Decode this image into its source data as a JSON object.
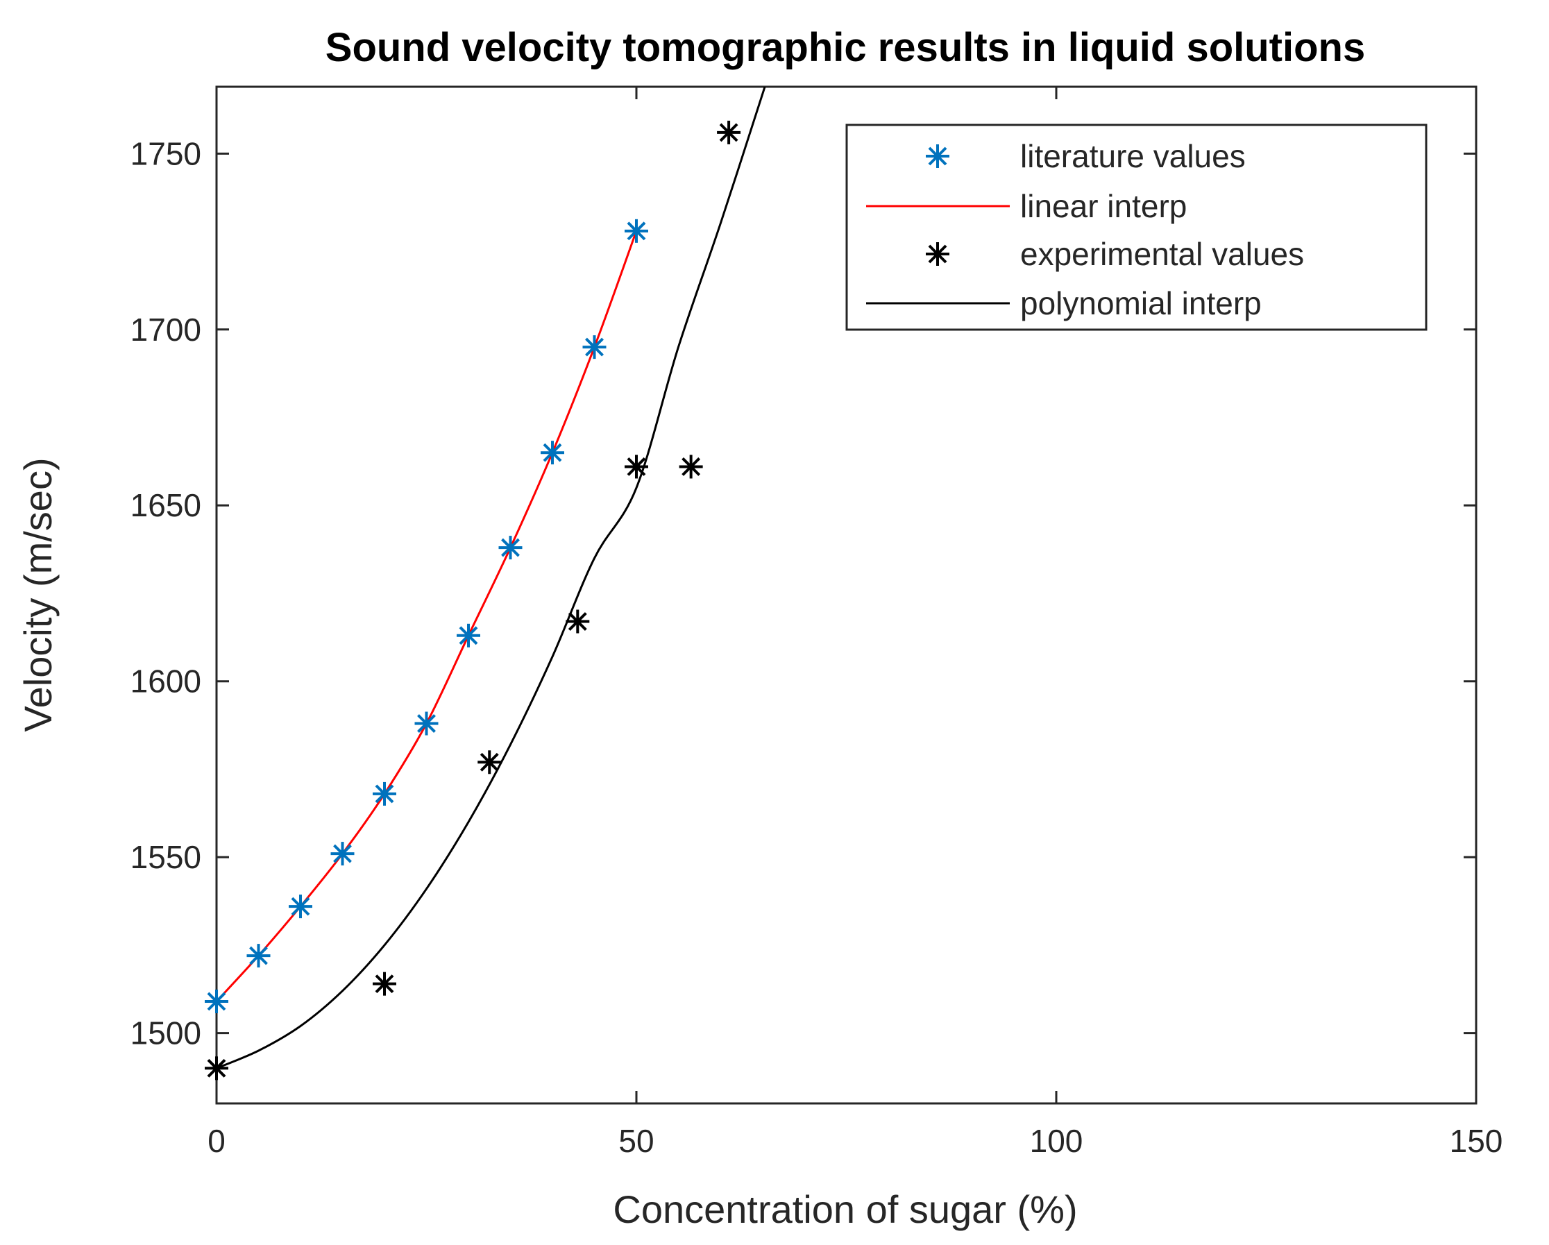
{
  "chart_data": {
    "type": "scatter",
    "title": "Sound velocity tomographic results in liquid solutions",
    "xlabel": "Concentration of sugar (%)",
    "ylabel": "Velocity (m/sec)",
    "xlim": [
      0,
      150
    ],
    "ylim": [
      1480,
      1769
    ],
    "xticks": [
      0,
      50,
      100,
      150
    ],
    "yticks": [
      1500,
      1550,
      1600,
      1650,
      1700,
      1750
    ],
    "legend_position": "top-right",
    "colors": {
      "literature": "#0072BD",
      "linear": "#FF0000",
      "experimental": "#000000",
      "polynomial": "#000000"
    },
    "series": [
      {
        "name": "literature values",
        "style": "marker",
        "x": [
          0,
          5,
          10,
          15,
          20,
          25,
          30,
          35,
          40,
          45,
          50
        ],
        "y": [
          1509,
          1522,
          1536,
          1551,
          1568,
          1588,
          1613,
          1638,
          1665,
          1695,
          1728
        ]
      },
      {
        "name": "linear interp",
        "style": "line",
        "x": [
          0,
          5,
          10,
          15,
          20,
          25,
          30,
          35,
          40,
          45,
          50
        ],
        "y": [
          1509,
          1522,
          1536,
          1551,
          1568,
          1588,
          1613,
          1638,
          1665,
          1695,
          1728
        ]
      },
      {
        "name": "experimental values",
        "style": "marker",
        "x": [
          0,
          20,
          32.5,
          43,
          50,
          56.5,
          61
        ],
        "y": [
          1490,
          1514,
          1577,
          1617,
          1661,
          1661,
          1756
        ]
      },
      {
        "name": "polynomial interp",
        "style": "line",
        "x": [
          0,
          5,
          10,
          15,
          20,
          25,
          30,
          35,
          40,
          45,
          50,
          55,
          60,
          65.3
        ],
        "y": [
          1490,
          1495,
          1502,
          1512,
          1525,
          1541,
          1560,
          1582,
          1607,
          1635,
          1655,
          1695,
          1730,
          1769
        ]
      }
    ]
  }
}
